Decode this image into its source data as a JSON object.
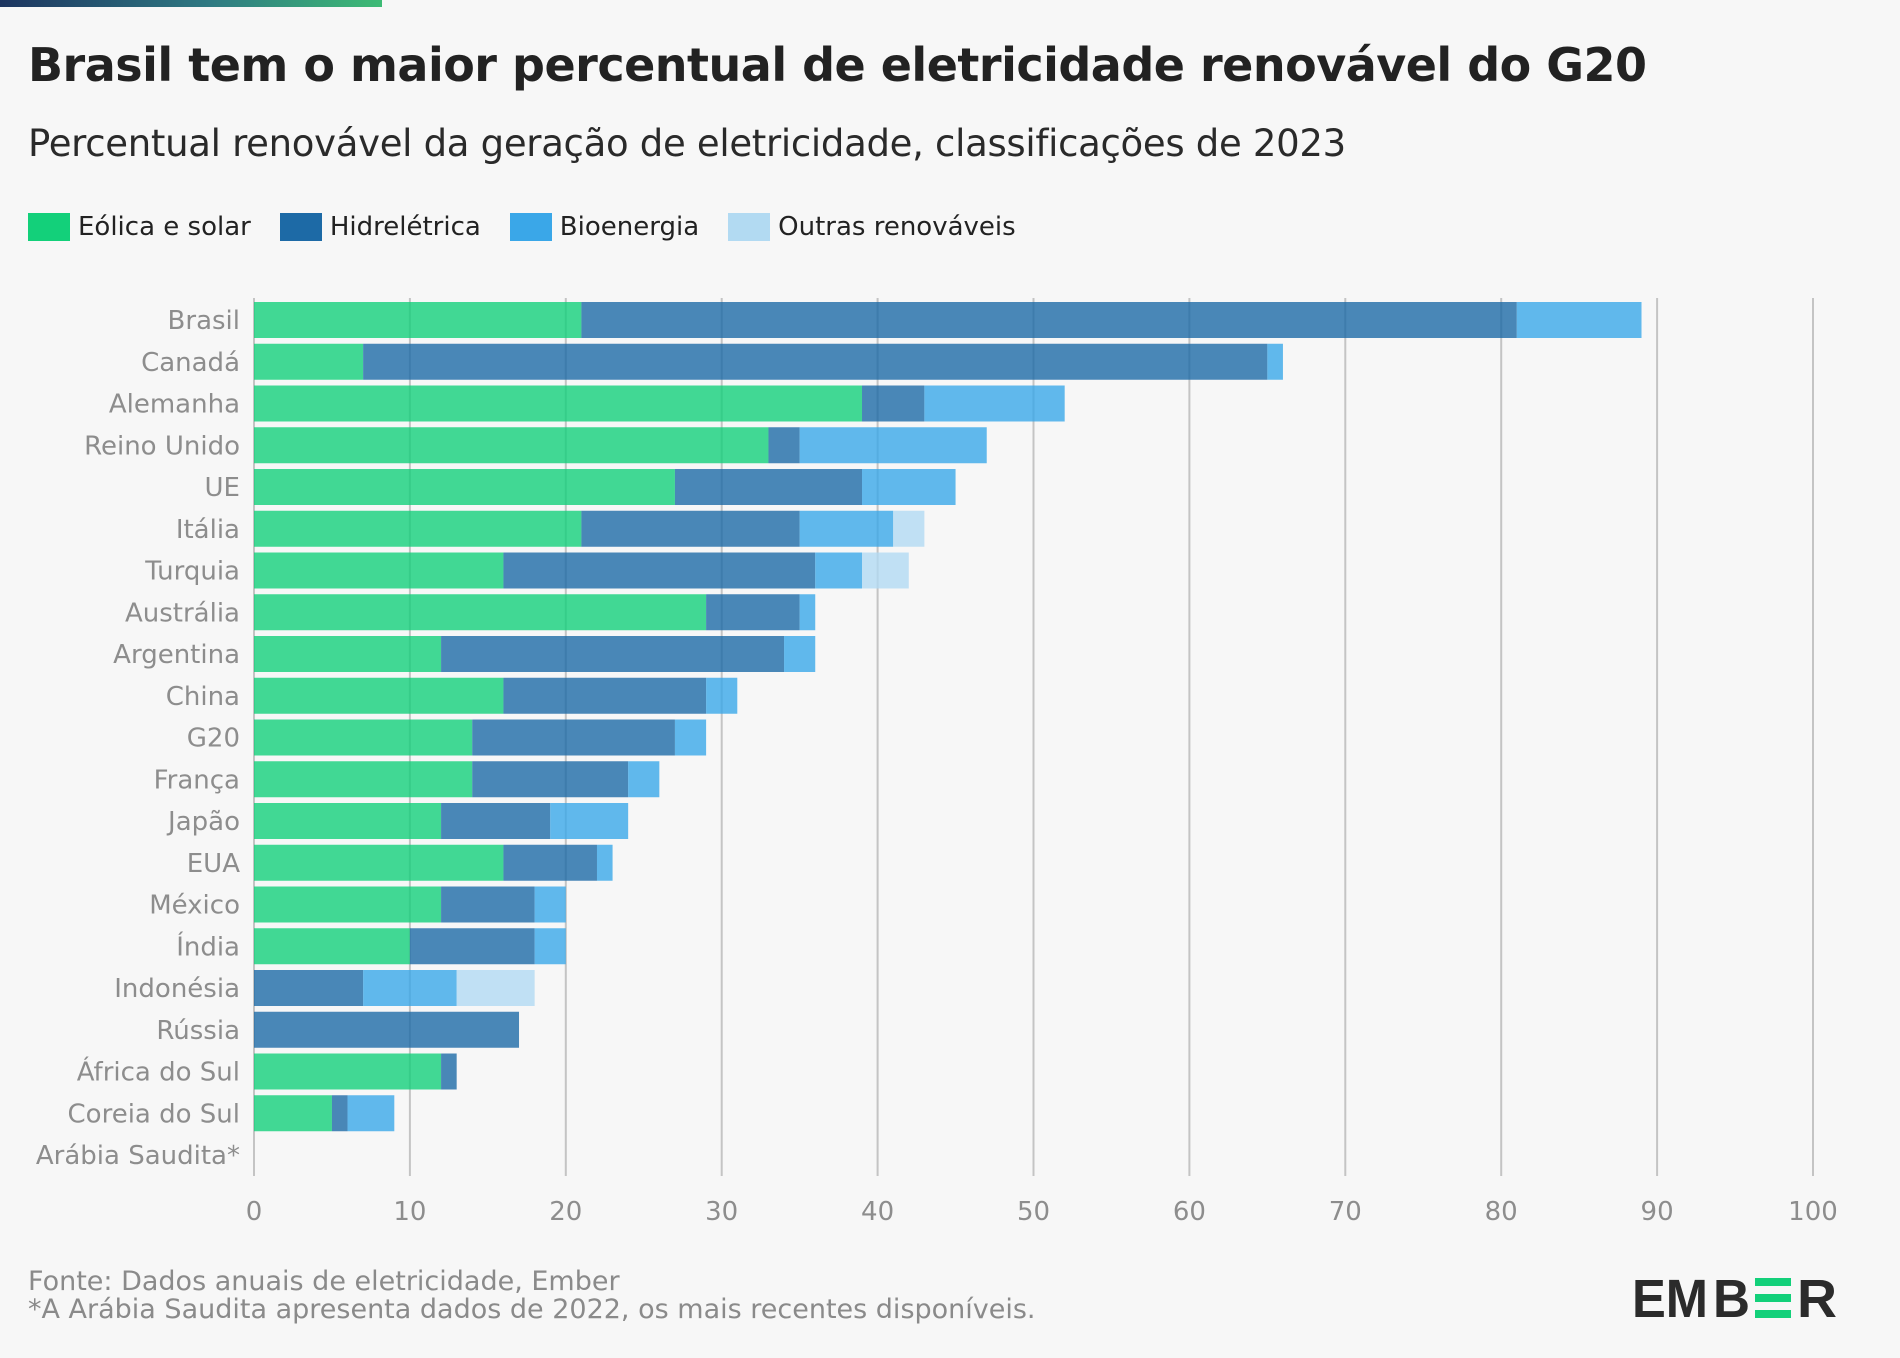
{
  "header": {
    "title": "Brasil tem o maior percentual de eletricidade renovável do G20",
    "subtitle": "Percentual renovável da geração de eletricidade, classificações de 2023"
  },
  "legend": [
    {
      "label": "Eólica e solar",
      "color": "#13d07a"
    },
    {
      "label": "Hidrelétrica",
      "color": "#1d6aa6"
    },
    {
      "label": "Bioenergia",
      "color": "#3aa7e8"
    },
    {
      "label": "Outras renováveis",
      "color": "#b2daf2"
    }
  ],
  "chart_data": {
    "type": "bar",
    "orientation": "horizontal",
    "stacked": true,
    "title": "Brasil tem o maior percentual de eletricidade renovável do G20",
    "subtitle": "Percentual renovável da geração de eletricidade, classificações de 2023",
    "xlabel": "",
    "ylabel": "",
    "xlim": [
      0,
      100
    ],
    "x_ticks": [
      0,
      10,
      20,
      30,
      40,
      50,
      60,
      70,
      80,
      90,
      100
    ],
    "grid": true,
    "legend_position": "top-left",
    "categories": [
      "Brasil",
      "Canadá",
      "Alemanha",
      "Reino Unido",
      "UE",
      "Itália",
      "Turquia",
      "Austrália",
      "Argentina",
      "China",
      "G20",
      "França",
      "Japão",
      "EUA",
      "México",
      "Índia",
      "Indonésia",
      "Rússia",
      "África do Sul",
      "Coreia do Sul",
      "Arábia Saudita*"
    ],
    "series": [
      {
        "name": "Eólica e solar",
        "color": "#13d07a",
        "values": [
          21,
          7,
          39,
          33,
          27,
          21,
          16,
          29,
          12,
          16,
          14,
          14,
          12,
          16,
          12,
          10,
          0,
          0,
          12,
          5,
          0
        ]
      },
      {
        "name": "Hidrelétrica",
        "color": "#1d6aa6",
        "values": [
          60,
          58,
          4,
          2,
          12,
          14,
          20,
          6,
          22,
          13,
          13,
          10,
          7,
          6,
          6,
          8,
          7,
          17,
          1,
          1,
          0
        ]
      },
      {
        "name": "Bioenergia",
        "color": "#3aa7e8",
        "values": [
          8,
          1,
          9,
          12,
          6,
          6,
          3,
          1,
          2,
          2,
          2,
          2,
          5,
          1,
          2,
          2,
          6,
          0,
          0,
          3,
          0
        ]
      },
      {
        "name": "Outras renováveis",
        "color": "#b2daf2",
        "values": [
          0,
          0,
          0,
          0,
          0,
          2,
          3,
          0,
          0,
          0,
          0,
          0,
          0,
          0,
          0,
          0,
          5,
          0,
          0,
          0,
          0
        ]
      }
    ]
  },
  "footer": {
    "source": "Fonte: Dados anuais de eletricidade, Ember",
    "note": "*A Arábia Saudita apresenta dados de 2022, os mais recentes disponíveis."
  },
  "brand": {
    "logo_text": "EMBER",
    "text_color": "#2b2b2b",
    "accent_color": "#13d07a"
  }
}
